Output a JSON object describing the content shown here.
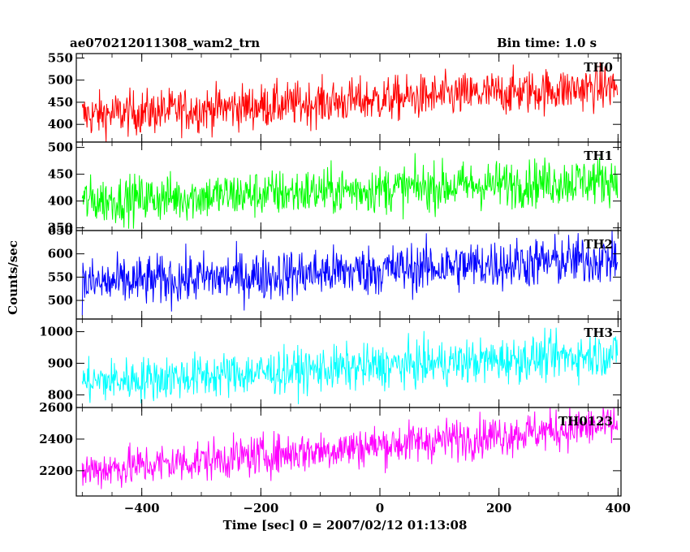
{
  "header": {
    "title": "ae070212011308_wam2_trn",
    "bin_time": "Bin time: 1.0 s"
  },
  "chart_data": {
    "type": "line",
    "xlabel": "Time [sec] 0 = 2007/02/12 01:13:08",
    "ylabel": "Counts/sec",
    "xlim": [
      -510,
      405
    ],
    "xticks": [
      -400,
      -200,
      0,
      200,
      400
    ],
    "x_start": -500,
    "x_end": 399,
    "x_step": 1,
    "panels": [
      {
        "name": "TH0",
        "color": "#ff0000",
        "ylim": [
          360,
          560
        ],
        "yticks": [
          400,
          450,
          500,
          550
        ],
        "start_mean": 420,
        "end_mean": 485,
        "noise": 25
      },
      {
        "name": "TH1",
        "color": "#00ff00",
        "ylim": [
          345,
          510
        ],
        "yticks": [
          350,
          400,
          450,
          500
        ],
        "start_mean": 400,
        "end_mean": 440,
        "noise": 22
      },
      {
        "name": "TH2",
        "color": "#0000ff",
        "ylim": [
          460,
          650
        ],
        "yticks": [
          500,
          550,
          600,
          650
        ],
        "start_mean": 535,
        "end_mean": 590,
        "noise": 27
      },
      {
        "name": "TH3",
        "color": "#00ffff",
        "ylim": [
          760,
          1040
        ],
        "yticks": [
          800,
          900,
          1000
        ],
        "start_mean": 840,
        "end_mean": 930,
        "noise": 35
      },
      {
        "name": "TH0123",
        "color": "#ff00ff",
        "ylim": [
          2040,
          2600
        ],
        "yticks": [
          2200,
          2400,
          2600
        ],
        "start_mean": 2200,
        "end_mean": 2490,
        "noise": 65
      }
    ]
  }
}
